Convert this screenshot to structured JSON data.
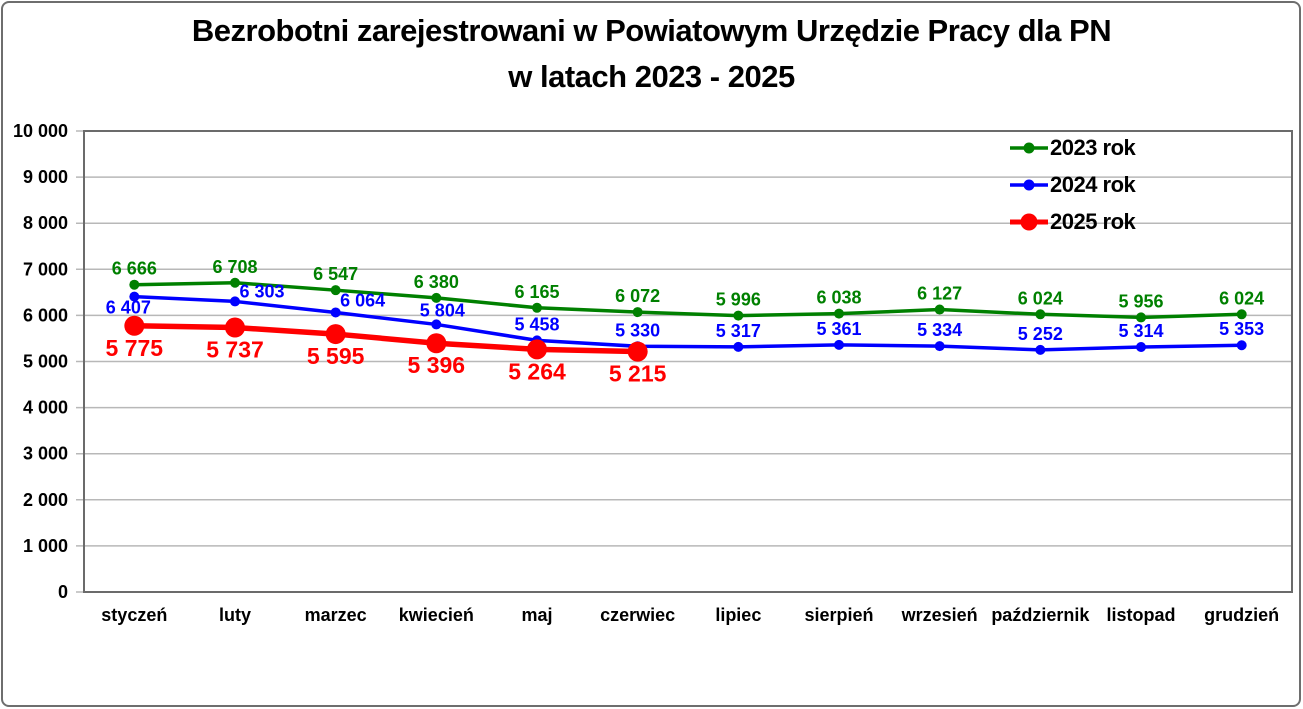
{
  "window": {
    "background": "#ffffff",
    "frame_border_color": "#6e6e6e"
  },
  "title": {
    "line1": "Bezrobotni zarejestrowani w Powiatowym Urzędzie Pracy dla PN",
    "line2": "w latach 2023 - 2025"
  },
  "legend": {
    "position": "top-right",
    "items": [
      {
        "label": "2023 rok",
        "color": "#008000",
        "big_marker": false
      },
      {
        "label": "2024 rok",
        "color": "#0000ff",
        "big_marker": false
      },
      {
        "label": "2025 rok",
        "color": "#ff0000",
        "big_marker": true
      }
    ]
  },
  "chart_data": {
    "type": "line",
    "title": "Bezrobotni zarejestrowani w Powiatowym Urzędzie Pracy dla PN w latach 2023 - 2025",
    "xlabel": "",
    "ylabel": "",
    "ylim": [
      0,
      10000
    ],
    "ytick_step": 1000,
    "ytick_labels": [
      "0",
      "1 000",
      "2 000",
      "3 000",
      "4 000",
      "5 000",
      "6 000",
      "7 000",
      "8 000",
      "9 000",
      "10 000"
    ],
    "grid": "horizontal",
    "gridline_color": "#b8b8b8",
    "plot_border_color": "#6b6b6b",
    "number_format": "space-thousands",
    "legend_position": "top-right",
    "categories": [
      "styczeń",
      "luty",
      "marzec",
      "kwiecień",
      "maj",
      "czerwiec",
      "lipiec",
      "sierpień",
      "wrzesień",
      "październik",
      "listopad",
      "grudzień"
    ],
    "series": [
      {
        "name": "2023 rok",
        "color": "#008000",
        "values": [
          6666,
          6708,
          6547,
          6380,
          6165,
          6072,
          5996,
          6038,
          6127,
          6024,
          5956,
          6024
        ],
        "data_labels": "above"
      },
      {
        "name": "2024 rok",
        "color": "#0000ff",
        "values": [
          6407,
          6303,
          6064,
          5804,
          5458,
          5330,
          5317,
          5361,
          5334,
          5252,
          5314,
          5353
        ],
        "data_labels": "above"
      },
      {
        "name": "2025 rok",
        "color": "#ff0000",
        "values": [
          5775,
          5737,
          5595,
          5396,
          5264,
          5215
        ],
        "data_labels": "below"
      }
    ]
  }
}
